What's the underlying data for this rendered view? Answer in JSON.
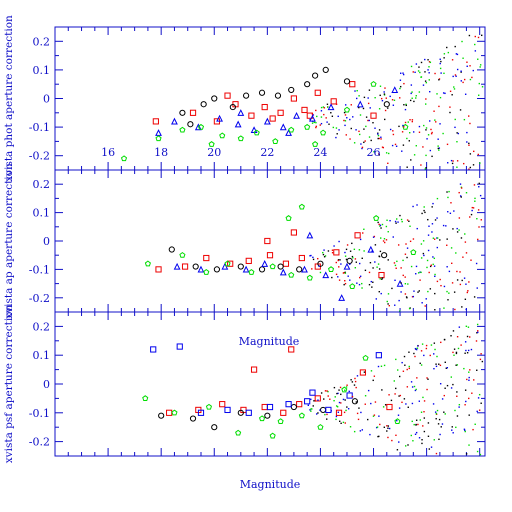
{
  "chart_data": {
    "type": "scatter",
    "xlim": [
      14,
      30.2
    ],
    "x_ticks": [
      16,
      18,
      20,
      22,
      24,
      26
    ],
    "x_tick_labels": [
      "16",
      "18",
      "20",
      "22",
      "24",
      "26"
    ],
    "x_tick_labels_on_panel": 1,
    "ylim": [
      -0.25,
      0.25
    ],
    "y_ticks": [
      -0.2,
      -0.1,
      0,
      0.1,
      0.2
    ],
    "y_tick_labels": [
      "-0.2",
      "-0.1",
      "0",
      "0.1",
      "0.2"
    ],
    "grid": false,
    "legend": "none",
    "colors": {
      "axis": "#1010c8",
      "black": "#000000",
      "red": "#ee0000",
      "blue": "#0000ee",
      "green": "#00dd00"
    },
    "panels": [
      {
        "ylabel": "xvista phot aperture correction",
        "xlabel": "",
        "series": [
          {
            "color": "red",
            "marker": "square",
            "points": [
              [
                19.2,
                -0.05
              ],
              [
                20.1,
                -0.08
              ],
              [
                20.8,
                -0.02
              ],
              [
                21.4,
                -0.06
              ],
              [
                21.9,
                -0.03
              ],
              [
                22.5,
                -0.05
              ],
              [
                23.0,
                0.0
              ],
              [
                23.4,
                -0.04
              ],
              [
                23.9,
                0.02
              ],
              [
                24.5,
                -0.01
              ],
              [
                25.2,
                0.05
              ],
              [
                26.0,
                -0.06
              ],
              [
                17.8,
                -0.08
              ],
              [
                20.5,
                0.01
              ],
              [
                22.2,
                -0.07
              ],
              [
                23.6,
                -0.06
              ]
            ]
          },
          {
            "color": "black",
            "marker": "circle",
            "points": [
              [
                18.8,
                -0.05
              ],
              [
                19.6,
                -0.02
              ],
              [
                20.0,
                0.0
              ],
              [
                20.7,
                -0.03
              ],
              [
                21.2,
                0.01
              ],
              [
                21.8,
                0.02
              ],
              [
                22.4,
                0.01
              ],
              [
                22.9,
                0.03
              ],
              [
                23.5,
                0.05
              ],
              [
                23.8,
                0.08
              ],
              [
                24.2,
                0.1
              ],
              [
                25.0,
                0.06
              ],
              [
                26.5,
                -0.02
              ],
              [
                19.1,
                -0.09
              ]
            ]
          },
          {
            "color": "blue",
            "marker": "triangle",
            "points": [
              [
                18.5,
                -0.08
              ],
              [
                19.4,
                -0.1
              ],
              [
                20.2,
                -0.07
              ],
              [
                20.9,
                -0.09
              ],
              [
                21.5,
                -0.11
              ],
              [
                22.0,
                -0.08
              ],
              [
                22.6,
                -0.1
              ],
              [
                23.1,
                -0.06
              ],
              [
                23.7,
                -0.07
              ],
              [
                24.4,
                -0.03
              ],
              [
                25.5,
                -0.02
              ],
              [
                26.8,
                0.03
              ],
              [
                17.9,
                -0.12
              ],
              [
                21.0,
                -0.05
              ],
              [
                22.8,
                -0.12
              ]
            ]
          },
          {
            "color": "green",
            "marker": "pentagon",
            "points": [
              [
                16.6,
                -0.21
              ],
              [
                17.9,
                -0.14
              ],
              [
                18.8,
                -0.11
              ],
              [
                19.5,
                -0.1
              ],
              [
                20.3,
                -0.13
              ],
              [
                21.0,
                -0.14
              ],
              [
                21.6,
                -0.12
              ],
              [
                22.3,
                -0.15
              ],
              [
                22.9,
                -0.11
              ],
              [
                23.5,
                -0.1
              ],
              [
                24.1,
                -0.12
              ],
              [
                25.0,
                -0.04
              ],
              [
                26.0,
                0.05
              ],
              [
                27.2,
                -0.1
              ],
              [
                19.9,
                -0.16
              ],
              [
                23.8,
                -0.16
              ]
            ]
          }
        ]
      },
      {
        "ylabel": "xvista ap aperture correction",
        "xlabel": "",
        "series": [
          {
            "color": "red",
            "marker": "square",
            "points": [
              [
                18.9,
                -0.09
              ],
              [
                19.7,
                -0.06
              ],
              [
                20.6,
                -0.08
              ],
              [
                21.3,
                -0.07
              ],
              [
                22.1,
                -0.05
              ],
              [
                22.7,
                -0.08
              ],
              [
                23.3,
                -0.06
              ],
              [
                23.9,
                -0.09
              ],
              [
                24.6,
                -0.04
              ],
              [
                25.4,
                0.02
              ],
              [
                26.3,
                -0.12
              ],
              [
                17.9,
                -0.1
              ],
              [
                22.0,
                0.0
              ],
              [
                23.0,
                0.03
              ]
            ]
          },
          {
            "color": "black",
            "marker": "circle",
            "points": [
              [
                18.4,
                -0.03
              ],
              [
                19.3,
                -0.09
              ],
              [
                20.1,
                -0.1
              ],
              [
                21.0,
                -0.09
              ],
              [
                21.8,
                -0.1
              ],
              [
                22.5,
                -0.09
              ],
              [
                23.2,
                -0.1
              ],
              [
                24.0,
                -0.08
              ],
              [
                25.1,
                -0.07
              ],
              [
                26.4,
                -0.05
              ]
            ]
          },
          {
            "color": "blue",
            "marker": "triangle",
            "points": [
              [
                18.6,
                -0.09
              ],
              [
                19.5,
                -0.1
              ],
              [
                20.4,
                -0.09
              ],
              [
                21.2,
                -0.1
              ],
              [
                21.9,
                -0.08
              ],
              [
                22.6,
                -0.11
              ],
              [
                23.4,
                -0.1
              ],
              [
                24.2,
                -0.12
              ],
              [
                25.0,
                -0.09
              ],
              [
                25.9,
                -0.03
              ],
              [
                27.0,
                -0.15
              ],
              [
                23.6,
                0.02
              ],
              [
                24.8,
                -0.2
              ]
            ]
          },
          {
            "color": "green",
            "marker": "pentagon",
            "points": [
              [
                17.5,
                -0.08
              ],
              [
                18.8,
                -0.05
              ],
              [
                19.7,
                -0.11
              ],
              [
                20.5,
                -0.08
              ],
              [
                21.4,
                -0.11
              ],
              [
                22.2,
                -0.09
              ],
              [
                22.9,
                -0.12
              ],
              [
                23.6,
                -0.13
              ],
              [
                24.4,
                -0.1
              ],
              [
                25.2,
                -0.16
              ],
              [
                26.1,
                0.08
              ],
              [
                27.5,
                -0.04
              ],
              [
                22.8,
                0.08
              ],
              [
                23.3,
                0.12
              ]
            ]
          }
        ]
      },
      {
        "ylabel": "xvista psf aperture correction",
        "xlabel": "Magnitude",
        "series": [
          {
            "color": "red",
            "marker": "square",
            "points": [
              [
                18.3,
                -0.1
              ],
              [
                19.4,
                -0.09
              ],
              [
                20.3,
                -0.07
              ],
              [
                21.1,
                -0.09
              ],
              [
                21.9,
                -0.08
              ],
              [
                22.6,
                -0.1
              ],
              [
                23.2,
                -0.07
              ],
              [
                23.9,
                -0.05
              ],
              [
                24.7,
                -0.1
              ],
              [
                25.6,
                0.04
              ],
              [
                26.6,
                -0.08
              ],
              [
                21.5,
                0.05
              ],
              [
                22.9,
                0.12
              ]
            ]
          },
          {
            "color": "black",
            "marker": "circle",
            "points": [
              [
                18.0,
                -0.11
              ],
              [
                19.2,
                -0.12
              ],
              [
                20.0,
                -0.15
              ],
              [
                21.0,
                -0.1
              ],
              [
                22.0,
                -0.11
              ],
              [
                23.0,
                -0.08
              ],
              [
                24.1,
                -0.09
              ],
              [
                25.3,
                -0.06
              ]
            ]
          },
          {
            "color": "blue",
            "marker": "square",
            "points": [
              [
                17.7,
                0.12
              ],
              [
                18.7,
                0.13
              ],
              [
                19.5,
                -0.1
              ],
              [
                20.5,
                -0.09
              ],
              [
                21.3,
                -0.1
              ],
              [
                22.1,
                -0.08
              ],
              [
                22.8,
                -0.07
              ],
              [
                23.5,
                -0.06
              ],
              [
                24.3,
                -0.09
              ],
              [
                25.1,
                -0.04
              ],
              [
                26.2,
                0.1
              ],
              [
                23.7,
                -0.03
              ]
            ]
          },
          {
            "color": "green",
            "marker": "pentagon",
            "points": [
              [
                17.4,
                -0.05
              ],
              [
                18.5,
                -0.1
              ],
              [
                19.8,
                -0.08
              ],
              [
                20.9,
                -0.17
              ],
              [
                21.8,
                -0.12
              ],
              [
                22.5,
                -0.13
              ],
              [
                23.3,
                -0.11
              ],
              [
                24.0,
                -0.15
              ],
              [
                24.9,
                -0.02
              ],
              [
                25.7,
                0.09
              ],
              [
                26.9,
                -0.13
              ],
              [
                22.2,
                -0.18
              ]
            ]
          }
        ]
      }
    ]
  }
}
